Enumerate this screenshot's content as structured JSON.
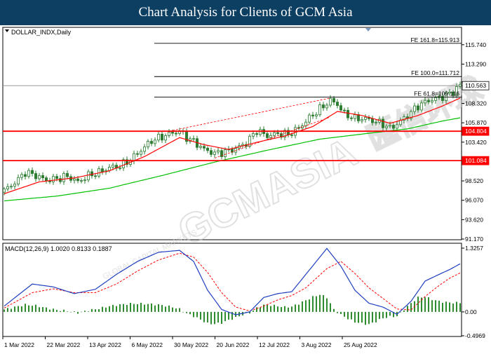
{
  "header": {
    "title": "Chart Analysis for Clients of GCM Asia"
  },
  "watermark": {
    "brand": "GCMASIA",
    "chinese": "匯信环球",
    "tagline": "GLOBAL CAPITAL MARKETS"
  },
  "colors": {
    "candle": "#2e7d32",
    "ma_fast": "#ff0000",
    "ma_slow": "#00c000",
    "macd_line": "#1f3fbf",
    "signal_line": "#ff0000",
    "histogram": "#2e8b2e",
    "support_line": "#ff0000",
    "fe_line": "#000000",
    "price_line": "#8a8a8a"
  },
  "chart_data": [
    {
      "type": "candlestick",
      "title": "DOLLAR_INDX,Daily",
      "ylim": [
        91.17,
        117.85
      ],
      "yticks": [
        "115.740",
        "113.290",
        "110.563",
        "108.320",
        "105.870",
        "104.804",
        "103.420",
        "101.084",
        "98.520",
        "96.070",
        "93.620",
        "91.170"
      ],
      "xticks": [
        "1 Mar 2022",
        "22 Mar 2022",
        "13 Apr 2022",
        "6 May 2022",
        "30 May 2022",
        "20 Jun 2022",
        "12 Jul 2022",
        "3 Aug 2022",
        "25 Aug 2022"
      ],
      "current_price": {
        "label": "110.563",
        "value": 110.563
      },
      "support_levels": [
        {
          "label": "104.804",
          "value": 104.804
        },
        {
          "label": "101.084",
          "value": 101.084
        }
      ],
      "fibonacci_extensions": [
        {
          "label": "FE 161.8=115.913",
          "value": 115.913
        },
        {
          "label": "FE 100.0=111.712",
          "value": 111.712
        },
        {
          "label": "FE 61.8=109.116",
          "value": 109.116
        }
      ],
      "anchors": [
        [
          0,
          97.3
        ],
        [
          3,
          98.3
        ],
        [
          6,
          99.6
        ],
        [
          9,
          99.2
        ],
        [
          12,
          98.6
        ],
        [
          15,
          98.8
        ],
        [
          18,
          99.1
        ],
        [
          21,
          98.4
        ],
        [
          24,
          99.2
        ],
        [
          27,
          99.6
        ],
        [
          30,
          100.2
        ],
        [
          33,
          100.4
        ],
        [
          36,
          101.2
        ],
        [
          39,
          102.4
        ],
        [
          42,
          103.6
        ],
        [
          45,
          104.1
        ],
        [
          48,
          104.6
        ],
        [
          50,
          104.8
        ],
        [
          52,
          104.0
        ],
        [
          54,
          103.5
        ],
        [
          57,
          102.5
        ],
        [
          60,
          102.0
        ],
        [
          63,
          102.2
        ],
        [
          66,
          102.6
        ],
        [
          69,
          103.3
        ],
        [
          72,
          104.9
        ],
        [
          75,
          104.2
        ],
        [
          78,
          104.5
        ],
        [
          81,
          104.4
        ],
        [
          84,
          105.2
        ],
        [
          87,
          106.5
        ],
        [
          90,
          107.6
        ],
        [
          93,
          108.7
        ],
        [
          95,
          108.2
        ],
        [
          97,
          107.0
        ],
        [
          100,
          106.4
        ],
        [
          103,
          106.4
        ],
        [
          106,
          106.0
        ],
        [
          108,
          105.7
        ],
        [
          110,
          105.2
        ],
        [
          112,
          105.7
        ],
        [
          115,
          106.8
        ],
        [
          118,
          108.0
        ],
        [
          121,
          108.7
        ],
        [
          124,
          109.0
        ],
        [
          127,
          109.5
        ],
        [
          130,
          110.6
        ]
      ],
      "ma_fast": [
        [
          0,
          96.9
        ],
        [
          10,
          98.4
        ],
        [
          20,
          98.9
        ],
        [
          30,
          99.8
        ],
        [
          40,
          101.6
        ],
        [
          50,
          104.0
        ],
        [
          57,
          103.1
        ],
        [
          64,
          102.5
        ],
        [
          72,
          103.4
        ],
        [
          80,
          104.2
        ],
        [
          88,
          105.4
        ],
        [
          95,
          107.3
        ],
        [
          102,
          106.8
        ],
        [
          110,
          105.8
        ],
        [
          118,
          106.8
        ],
        [
          125,
          108.0
        ],
        [
          130,
          109.0
        ]
      ],
      "ma_slow": [
        [
          0,
          96.0
        ],
        [
          15,
          96.6
        ],
        [
          30,
          97.6
        ],
        [
          45,
          99.2
        ],
        [
          60,
          100.9
        ],
        [
          75,
          102.4
        ],
        [
          90,
          103.8
        ],
        [
          105,
          104.6
        ],
        [
          115,
          105.1
        ],
        [
          125,
          106.1
        ],
        [
          130,
          106.5
        ]
      ]
    },
    {
      "type": "macd",
      "title": "MACD(12,26,9) 1.0020 0.8133 0.1887",
      "ylim": [
        -0.4969,
        1.3257
      ],
      "yticks": [
        "1.3257",
        "0.00",
        "-0.4969"
      ],
      "macd": [
        [
          0,
          0.12
        ],
        [
          8,
          0.58
        ],
        [
          14,
          0.52
        ],
        [
          20,
          0.38
        ],
        [
          26,
          0.47
        ],
        [
          32,
          0.78
        ],
        [
          38,
          1.05
        ],
        [
          44,
          1.24
        ],
        [
          50,
          1.28
        ],
        [
          54,
          1.05
        ],
        [
          58,
          0.45
        ],
        [
          62,
          0.05
        ],
        [
          66,
          -0.06
        ],
        [
          70,
          0.0
        ],
        [
          74,
          0.3
        ],
        [
          78,
          0.38
        ],
        [
          82,
          0.42
        ],
        [
          86,
          0.78
        ],
        [
          92,
          1.32
        ],
        [
          96,
          0.95
        ],
        [
          100,
          0.45
        ],
        [
          104,
          0.18
        ],
        [
          108,
          0.1
        ],
        [
          112,
          -0.05
        ],
        [
          116,
          0.22
        ],
        [
          120,
          0.64
        ],
        [
          124,
          0.78
        ],
        [
          127,
          0.88
        ],
        [
          130,
          1.0
        ]
      ],
      "signal": [
        [
          0,
          0.08
        ],
        [
          8,
          0.4
        ],
        [
          14,
          0.48
        ],
        [
          20,
          0.4
        ],
        [
          26,
          0.4
        ],
        [
          32,
          0.58
        ],
        [
          38,
          0.85
        ],
        [
          44,
          1.08
        ],
        [
          50,
          1.22
        ],
        [
          54,
          1.14
        ],
        [
          58,
          0.82
        ],
        [
          62,
          0.4
        ],
        [
          66,
          0.1
        ],
        [
          70,
          0.02
        ],
        [
          74,
          0.12
        ],
        [
          78,
          0.25
        ],
        [
          82,
          0.34
        ],
        [
          86,
          0.5
        ],
        [
          92,
          0.9
        ],
        [
          96,
          1.05
        ],
        [
          100,
          0.8
        ],
        [
          104,
          0.5
        ],
        [
          108,
          0.28
        ],
        [
          112,
          0.06
        ],
        [
          116,
          0.04
        ],
        [
          120,
          0.32
        ],
        [
          124,
          0.55
        ],
        [
          127,
          0.7
        ],
        [
          130,
          0.81
        ]
      ],
      "histogram": [
        [
          0,
          0.05
        ],
        [
          3,
          0.1
        ],
        [
          6,
          0.15
        ],
        [
          9,
          0.13
        ],
        [
          12,
          0.08
        ],
        [
          15,
          0.04
        ],
        [
          18,
          0.02
        ],
        [
          21,
          -0.02
        ],
        [
          24,
          0.03
        ],
        [
          27,
          0.07
        ],
        [
          30,
          0.12
        ],
        [
          33,
          0.15
        ],
        [
          36,
          0.17
        ],
        [
          39,
          0.17
        ],
        [
          42,
          0.16
        ],
        [
          45,
          0.14
        ],
        [
          48,
          0.1
        ],
        [
          50,
          0.06
        ],
        [
          52,
          -0.03
        ],
        [
          54,
          -0.09
        ],
        [
          56,
          -0.16
        ],
        [
          58,
          -0.24
        ],
        [
          60,
          -0.25
        ],
        [
          62,
          -0.23
        ],
        [
          64,
          -0.17
        ],
        [
          66,
          -0.12
        ],
        [
          68,
          -0.06
        ],
        [
          70,
          -0.02
        ],
        [
          72,
          0.08
        ],
        [
          74,
          0.14
        ],
        [
          76,
          0.14
        ],
        [
          78,
          0.12
        ],
        [
          80,
          0.1
        ],
        [
          82,
          0.11
        ],
        [
          84,
          0.17
        ],
        [
          86,
          0.24
        ],
        [
          88,
          0.31
        ],
        [
          90,
          0.36
        ],
        [
          92,
          0.3
        ],
        [
          94,
          0.05
        ],
        [
          96,
          -0.06
        ],
        [
          98,
          -0.14
        ],
        [
          100,
          -0.21
        ],
        [
          102,
          -0.24
        ],
        [
          104,
          -0.26
        ],
        [
          106,
          -0.2
        ],
        [
          108,
          -0.13
        ],
        [
          110,
          -0.1
        ],
        [
          112,
          -0.09
        ],
        [
          114,
          0.05
        ],
        [
          116,
          0.18
        ],
        [
          118,
          0.3
        ],
        [
          120,
          0.31
        ],
        [
          122,
          0.26
        ],
        [
          124,
          0.22
        ],
        [
          126,
          0.2
        ],
        [
          128,
          0.19
        ],
        [
          130,
          0.19
        ]
      ]
    }
  ]
}
